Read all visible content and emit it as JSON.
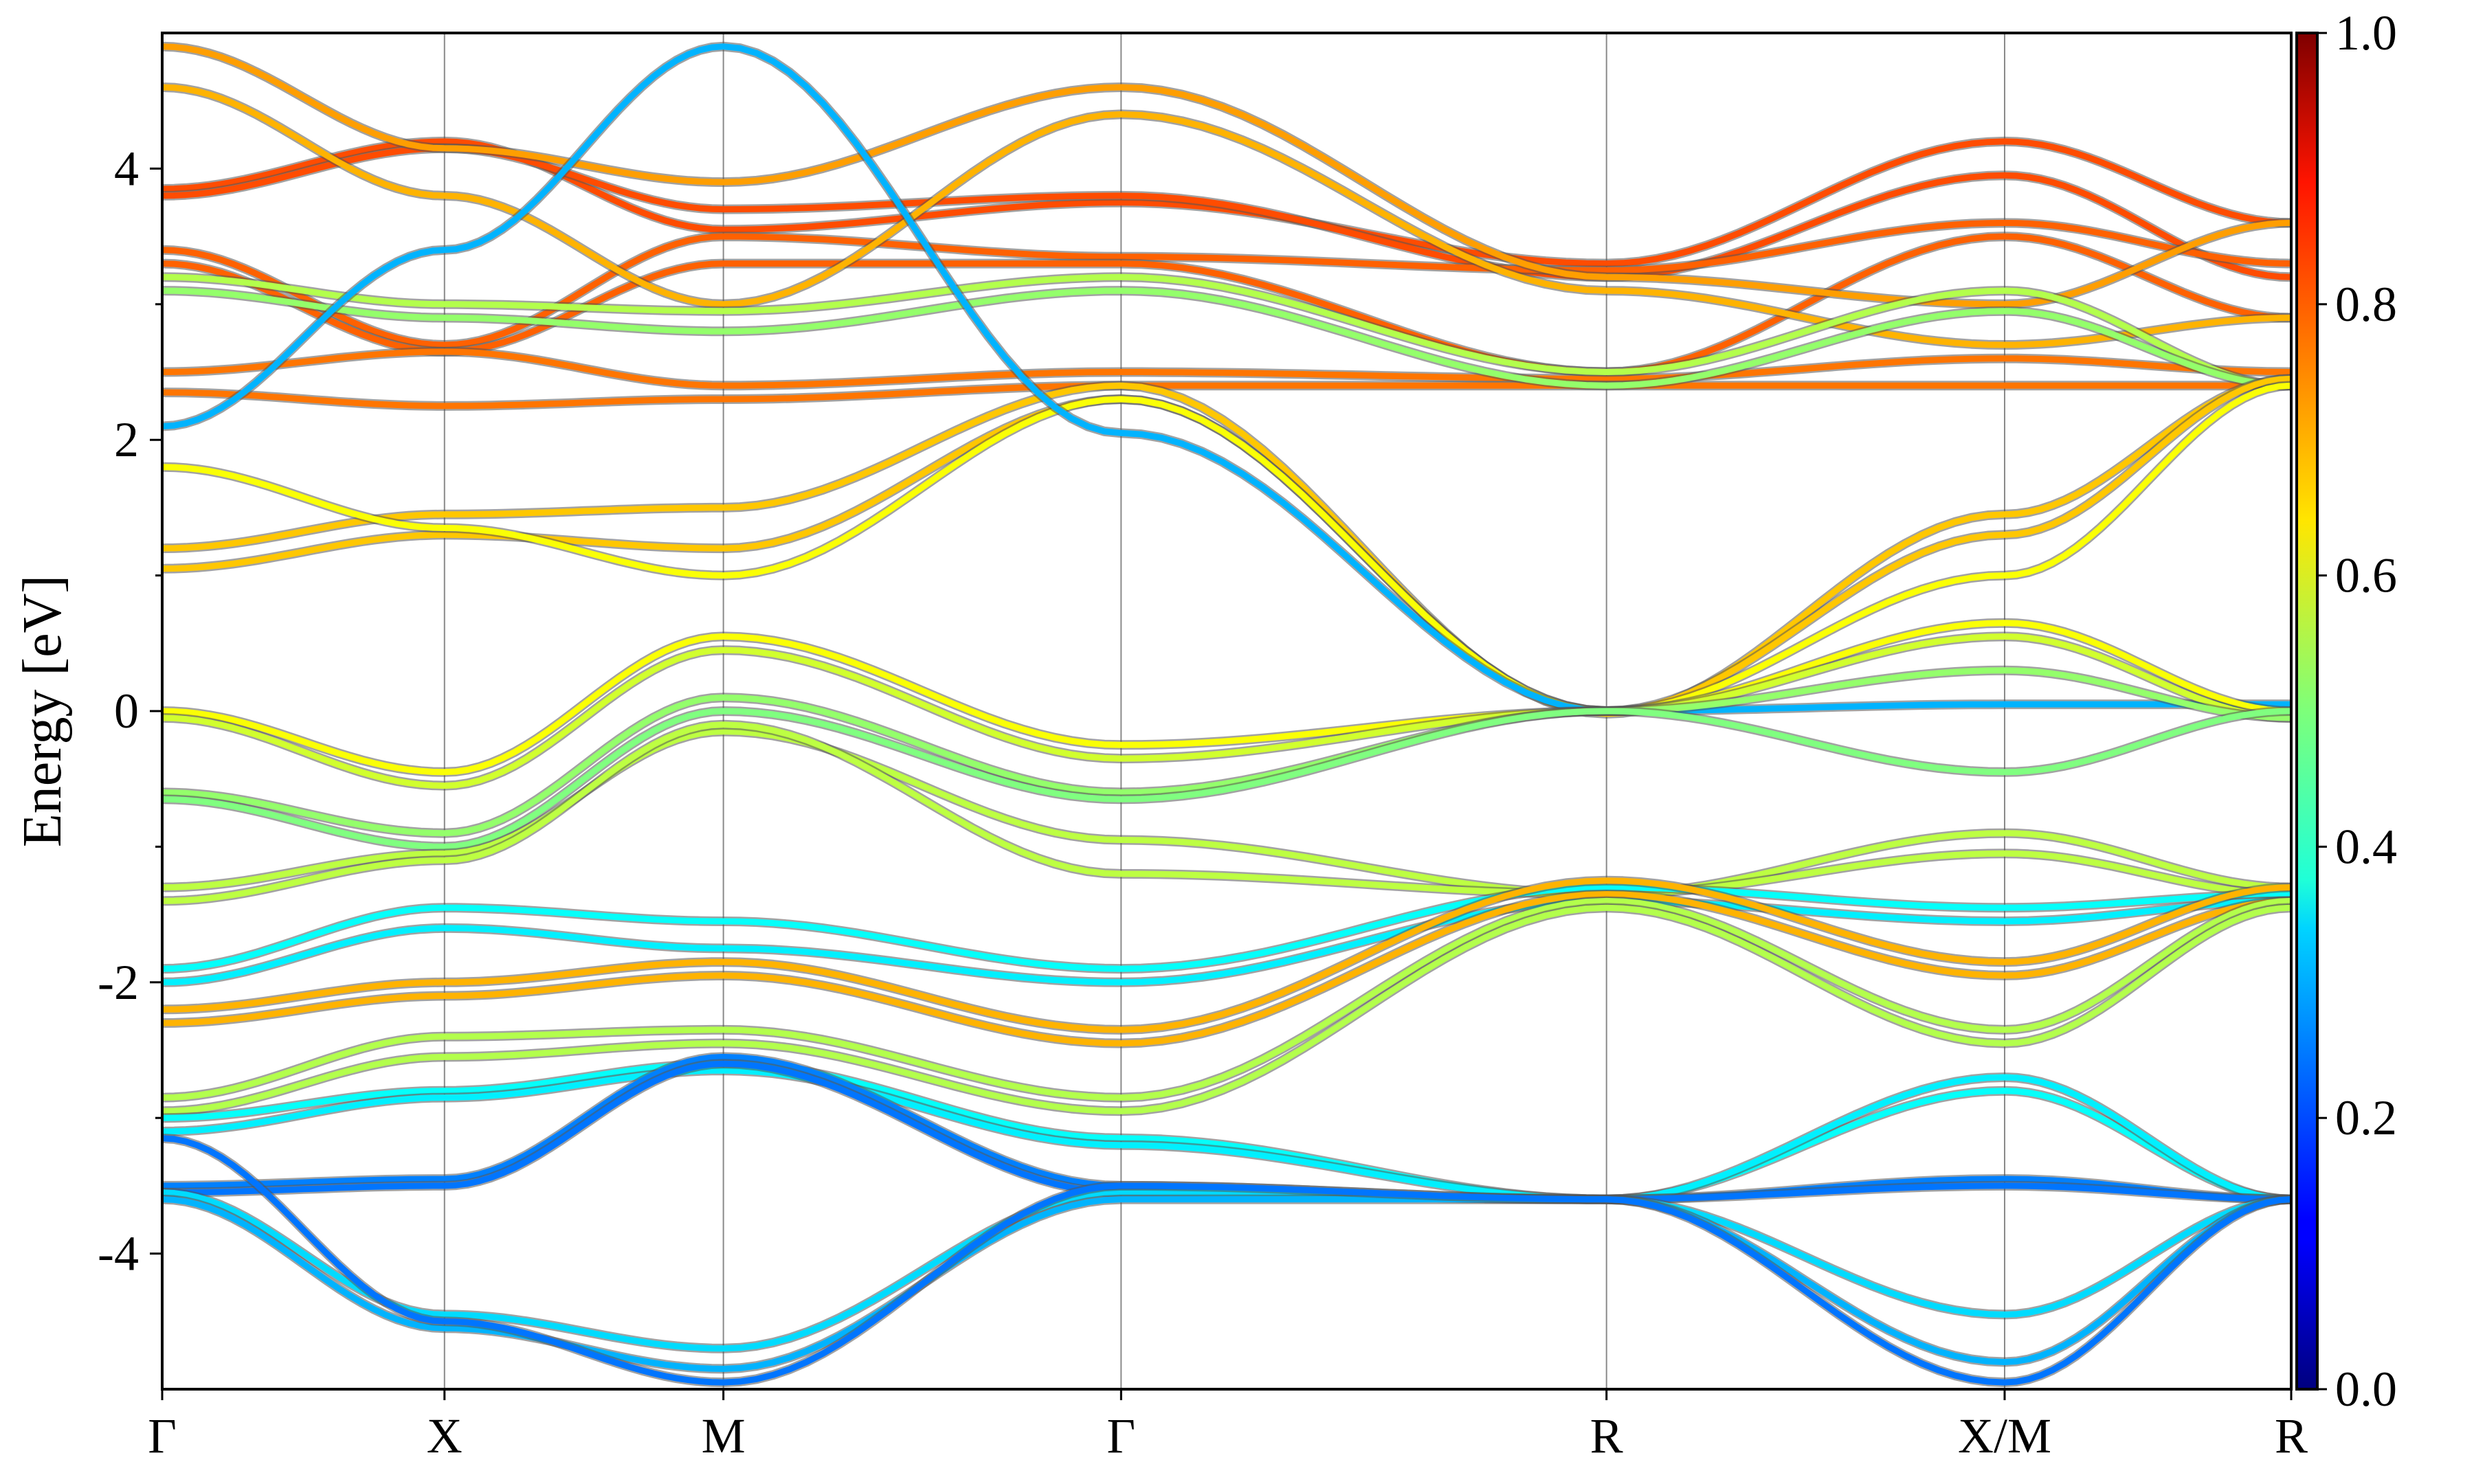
{
  "chart_data": {
    "type": "line",
    "ylabel": "Energy [eV]",
    "ylim": [
      -5,
      5
    ],
    "y_ticks": [
      "-4",
      "-2",
      "0",
      "2",
      "4"
    ],
    "k_path": [
      "Γ",
      "X",
      "M",
      "Γ",
      "R",
      "X/M",
      "R"
    ],
    "k_positions": [
      0,
      0.1326,
      0.2636,
      0.4504,
      0.6784,
      0.8654,
      1.0
    ],
    "grid": "vertical lines at high-symmetry points",
    "colormap": "jet",
    "colorbar": {
      "range": [
        0.0,
        1.0
      ],
      "ticks": [
        "0.0",
        "0.2",
        "0.4",
        "0.6",
        "0.8",
        "1.0"
      ]
    },
    "series": [
      {
        "c": 0.8,
        "y": [
          3.85,
          4.2,
          3.55,
          3.75,
          3.3,
          4.2,
          3.6
        ]
      },
      {
        "c": 0.8,
        "y": [
          3.8,
          4.15,
          3.7,
          3.8,
          3.2,
          3.95,
          3.2
        ]
      },
      {
        "c": 0.78,
        "y": [
          3.4,
          2.7,
          3.5,
          3.35,
          3.25,
          3.6,
          3.3
        ]
      },
      {
        "c": 0.78,
        "y": [
          3.3,
          2.65,
          3.3,
          3.3,
          2.5,
          3.5,
          2.9
        ]
      },
      {
        "c": 0.76,
        "y": [
          2.5,
          2.65,
          2.4,
          2.5,
          2.45,
          2.6,
          2.5
        ]
      },
      {
        "c": 0.76,
        "y": [
          2.35,
          2.25,
          2.3,
          2.4,
          2.4,
          2.4,
          2.4
        ]
      },
      {
        "c": 0.72,
        "y": [
          4.9,
          4.15,
          3.9,
          4.6,
          3.2,
          3.0,
          3.6
        ]
      },
      {
        "c": 0.7,
        "y": [
          4.6,
          3.8,
          3.0,
          4.4,
          3.1,
          2.7,
          2.9
        ]
      },
      {
        "c": 0.55,
        "y": [
          3.2,
          3.0,
          2.95,
          3.2,
          2.5,
          3.1,
          2.4
        ]
      },
      {
        "c": 0.52,
        "y": [
          3.1,
          2.9,
          2.8,
          3.1,
          2.4,
          2.95,
          2.4
        ]
      },
      {
        "c": 0.68,
        "y": [
          1.2,
          1.45,
          1.5,
          2.4,
          -0.02,
          1.45,
          2.45
        ]
      },
      {
        "c": 0.68,
        "y": [
          1.05,
          1.3,
          1.2,
          2.3,
          0.0,
          1.3,
          2.45
        ]
      },
      {
        "c": 0.62,
        "y": [
          1.8,
          1.35,
          1.0,
          2.3,
          0.0,
          1.0,
          2.4
        ]
      },
      {
        "c": 0.3,
        "y": [
          2.1,
          3.4,
          4.9,
          2.05,
          0.0,
          0.05,
          0.05
        ]
      },
      {
        "c": 0.62,
        "y": [
          0.0,
          -0.45,
          0.55,
          -0.25,
          0.0,
          0.65,
          0.0
        ]
      },
      {
        "c": 0.58,
        "y": [
          -0.05,
          -0.55,
          0.45,
          -0.35,
          0.0,
          0.55,
          -0.05
        ]
      },
      {
        "c": 0.52,
        "y": [
          -0.6,
          -0.9,
          0.1,
          -0.6,
          0.0,
          0.3,
          -0.05
        ]
      },
      {
        "c": 0.5,
        "y": [
          -0.65,
          -1.0,
          0.0,
          -0.65,
          0.0,
          -0.45,
          0.0
        ]
      },
      {
        "c": 0.56,
        "y": [
          -1.3,
          -1.05,
          -0.15,
          -0.95,
          -1.35,
          -0.9,
          -1.3
        ]
      },
      {
        "c": 0.56,
        "y": [
          -1.4,
          -1.1,
          -0.1,
          -1.2,
          -1.35,
          -1.05,
          -1.35
        ]
      },
      {
        "c": 0.38,
        "y": [
          -1.9,
          -1.45,
          -1.55,
          -1.9,
          -1.3,
          -1.45,
          -1.35
        ]
      },
      {
        "c": 0.36,
        "y": [
          -2.0,
          -1.6,
          -1.75,
          -2.0,
          -1.4,
          -1.55,
          -1.4
        ]
      },
      {
        "c": 0.7,
        "y": [
          -2.2,
          -2.0,
          -1.85,
          -2.35,
          -1.25,
          -1.85,
          -1.3
        ]
      },
      {
        "c": 0.7,
        "y": [
          -2.3,
          -2.1,
          -1.95,
          -2.45,
          -1.35,
          -1.95,
          -1.4
        ]
      },
      {
        "c": 0.55,
        "y": [
          -2.85,
          -2.4,
          -2.35,
          -2.85,
          -1.4,
          -2.35,
          -1.4
        ]
      },
      {
        "c": 0.55,
        "y": [
          -2.95,
          -2.55,
          -2.45,
          -2.95,
          -1.45,
          -2.45,
          -1.45
        ]
      },
      {
        "c": 0.38,
        "y": [
          -3.0,
          -2.8,
          -2.6,
          -3.15,
          -3.6,
          -2.8,
          -3.6
        ]
      },
      {
        "c": 0.36,
        "y": [
          -3.1,
          -2.85,
          -2.65,
          -3.2,
          -3.6,
          -2.7,
          -3.6
        ]
      },
      {
        "c": 0.25,
        "y": [
          -3.5,
          -3.45,
          -2.55,
          -3.5,
          -3.6,
          -3.45,
          -3.6
        ]
      },
      {
        "c": 0.24,
        "y": [
          -3.55,
          -3.5,
          -2.6,
          -3.55,
          -3.6,
          -3.5,
          -3.6
        ]
      },
      {
        "c": 0.34,
        "y": [
          -3.55,
          -4.45,
          -4.7,
          -3.55,
          -3.6,
          -4.45,
          -3.6
        ]
      },
      {
        "c": 0.3,
        "y": [
          -3.6,
          -4.55,
          -4.85,
          -3.6,
          -3.6,
          -4.8,
          -3.6
        ]
      },
      {
        "c": 0.24,
        "y": [
          -3.15,
          -4.5,
          -4.95,
          -3.5,
          -3.6,
          -4.95,
          -3.6
        ]
      }
    ]
  }
}
